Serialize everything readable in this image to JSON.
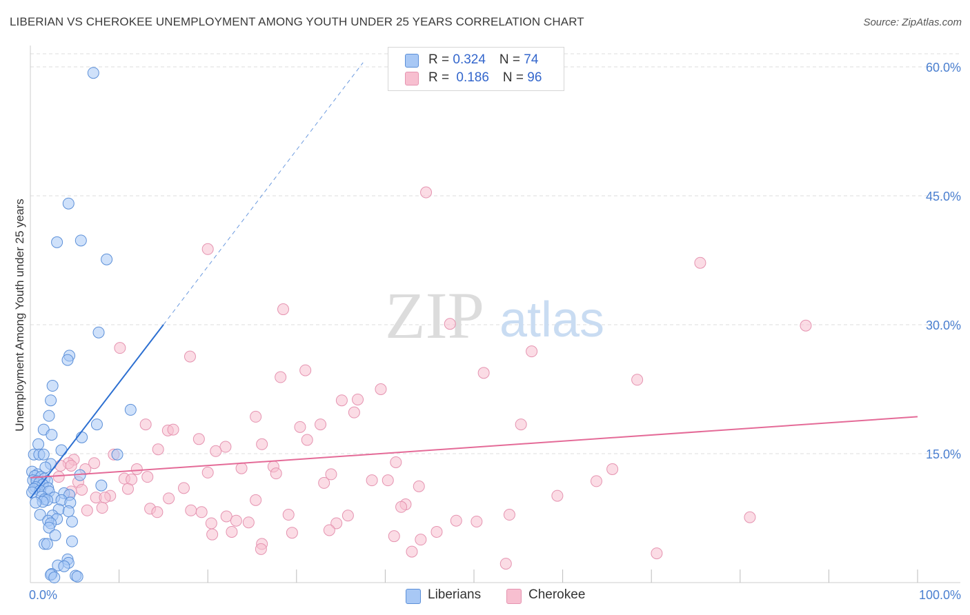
{
  "header": {
    "title": "LIBERIAN VS CHEROKEE UNEMPLOYMENT AMONG YOUTH UNDER 25 YEARS CORRELATION CHART",
    "source": "Source: ZipAtlas.com"
  },
  "watermark": {
    "zip": "ZIP",
    "atlas": "atlas"
  },
  "legend": {
    "rows": [
      {
        "r_label": "R = ",
        "r_value": "0.324",
        "n_label": "N = ",
        "n_value": "74"
      },
      {
        "r_label": "R = ",
        "r_value": "0.186",
        "n_label": "N = ",
        "n_value": "96"
      }
    ]
  },
  "bottom_legend": {
    "liberians": "Liberians",
    "cherokee": "Cherokee"
  },
  "colors": {
    "liberian_fill": "#a8c8f5",
    "liberian_stroke": "#5b8fd8",
    "liberian_line": "#2c6fd1",
    "cherokee_fill": "#f7bfd0",
    "cherokee_stroke": "#e593b0",
    "cherokee_line": "#e46a97",
    "tick_text": "#4a7fd0",
    "grid": "#dedede"
  },
  "chart_data": {
    "type": "scatter",
    "title": "LIBERIAN VS CHEROKEE UNEMPLOYMENT AMONG YOUTH UNDER 25 YEARS CORRELATION CHART",
    "xlabel": "",
    "ylabel": "Unemployment Among Youth under 25 years",
    "xlim": [
      0,
      100
    ],
    "ylim": [
      0,
      63
    ],
    "x_tick_labels": [
      {
        "value": 0,
        "label": "0.0%"
      },
      {
        "value": 100,
        "label": "100.0%"
      }
    ],
    "x_minor_ticks": [
      10,
      20,
      30,
      40,
      50,
      60,
      70,
      80,
      90,
      100
    ],
    "y_ticks": [
      {
        "value": 15,
        "label": "15.0%"
      },
      {
        "value": 30,
        "label": "30.0%"
      },
      {
        "value": 45,
        "label": "45.0%"
      },
      {
        "value": 60,
        "label": "60.0%"
      }
    ],
    "series": [
      {
        "name": "Liberians",
        "R": 0.324,
        "N": 74,
        "trend": {
          "x0": 0,
          "y0": 9.8,
          "x1": 15,
          "y1": 30,
          "dash_to_x": 37.5,
          "dash_to_y": 60.5
        },
        "points": [
          [
            7.1,
            59.3
          ],
          [
            4.3,
            44.1
          ],
          [
            3.0,
            39.6
          ],
          [
            5.7,
            39.8
          ],
          [
            8.6,
            37.6
          ],
          [
            7.7,
            29.1
          ],
          [
            4.4,
            26.4
          ],
          [
            4.2,
            25.9
          ],
          [
            2.5,
            22.9
          ],
          [
            2.3,
            21.2
          ],
          [
            11.3,
            20.1
          ],
          [
            2.1,
            19.4
          ],
          [
            7.5,
            18.4
          ],
          [
            1.5,
            17.8
          ],
          [
            2.4,
            17.2
          ],
          [
            5.8,
            16.9
          ],
          [
            0.9,
            16.1
          ],
          [
            3.5,
            15.4
          ],
          [
            9.8,
            14.9
          ],
          [
            0.4,
            14.9
          ],
          [
            1.0,
            14.9
          ],
          [
            1.5,
            14.9
          ],
          [
            2.3,
            13.8
          ],
          [
            1.7,
            13.4
          ],
          [
            0.2,
            12.9
          ],
          [
            0.8,
            12.6
          ],
          [
            5.6,
            12.5
          ],
          [
            0.5,
            12.4
          ],
          [
            1.2,
            12.3
          ],
          [
            1.6,
            12.1
          ],
          [
            0.3,
            11.9
          ],
          [
            0.7,
            11.8
          ],
          [
            1.9,
            11.8
          ],
          [
            1.0,
            11.6
          ],
          [
            1.4,
            11.4
          ],
          [
            8.0,
            11.3
          ],
          [
            0.6,
            11.1
          ],
          [
            2.0,
            11.0
          ],
          [
            0.4,
            10.9
          ],
          [
            1.1,
            10.7
          ],
          [
            2.1,
            10.6
          ],
          [
            0.2,
            10.5
          ],
          [
            3.8,
            10.4
          ],
          [
            4.4,
            10.2
          ],
          [
            1.3,
            10.0
          ],
          [
            2.7,
            9.9
          ],
          [
            1.6,
            9.7
          ],
          [
            1.9,
            9.6
          ],
          [
            3.5,
            9.6
          ],
          [
            1.4,
            9.4
          ],
          [
            0.6,
            9.3
          ],
          [
            4.5,
            9.3
          ],
          [
            3.2,
            8.5
          ],
          [
            4.3,
            8.3
          ],
          [
            1.1,
            7.9
          ],
          [
            2.5,
            7.8
          ],
          [
            3.0,
            7.4
          ],
          [
            2.0,
            7.2
          ],
          [
            4.7,
            7.1
          ],
          [
            2.3,
            6.9
          ],
          [
            2.1,
            6.4
          ],
          [
            2.8,
            5.5
          ],
          [
            4.7,
            4.8
          ],
          [
            1.6,
            4.5
          ],
          [
            1.9,
            4.5
          ],
          [
            4.2,
            2.7
          ],
          [
            4.3,
            2.3
          ],
          [
            3.1,
            2.0
          ],
          [
            3.8,
            1.9
          ],
          [
            2.4,
            1.0
          ],
          [
            2.3,
            0.9
          ],
          [
            5.1,
            0.8
          ],
          [
            5.3,
            0.7
          ],
          [
            2.7,
            0.6
          ]
        ]
      },
      {
        "name": "Cherokee",
        "R": 0.186,
        "N": 96,
        "trend": {
          "x0": 0,
          "y0": 12.2,
          "x1": 100,
          "y1": 19.3
        },
        "points": [
          [
            44.6,
            45.4
          ],
          [
            20.0,
            38.8
          ],
          [
            75.5,
            37.2
          ],
          [
            28.5,
            31.8
          ],
          [
            47.3,
            30.1
          ],
          [
            87.4,
            29.9
          ],
          [
            10.1,
            27.3
          ],
          [
            56.5,
            26.9
          ],
          [
            18.0,
            26.3
          ],
          [
            31.0,
            24.7
          ],
          [
            51.1,
            24.4
          ],
          [
            68.4,
            23.6
          ],
          [
            28.2,
            23.9
          ],
          [
            39.5,
            22.5
          ],
          [
            36.9,
            21.3
          ],
          [
            35.1,
            21.2
          ],
          [
            36.5,
            19.8
          ],
          [
            25.4,
            19.3
          ],
          [
            13.0,
            18.4
          ],
          [
            55.3,
            18.4
          ],
          [
            30.4,
            18.1
          ],
          [
            32.7,
            18.4
          ],
          [
            15.5,
            17.7
          ],
          [
            16.1,
            17.8
          ],
          [
            19.0,
            16.7
          ],
          [
            31.2,
            16.6
          ],
          [
            22.0,
            15.8
          ],
          [
            26.1,
            16.1
          ],
          [
            20.9,
            15.3
          ],
          [
            14.4,
            15.5
          ],
          [
            9.4,
            14.9
          ],
          [
            4.9,
            14.3
          ],
          [
            4.3,
            13.9
          ],
          [
            7.2,
            13.9
          ],
          [
            3.4,
            13.6
          ],
          [
            4.6,
            13.6
          ],
          [
            27.4,
            13.5
          ],
          [
            41.2,
            14.0
          ],
          [
            6.2,
            13.2
          ],
          [
            23.8,
            13.3
          ],
          [
            12.0,
            13.2
          ],
          [
            65.6,
            13.2
          ],
          [
            20.0,
            12.8
          ],
          [
            33.9,
            12.6
          ],
          [
            27.7,
            12.7
          ],
          [
            3.2,
            12.3
          ],
          [
            13.2,
            12.3
          ],
          [
            10.6,
            12.1
          ],
          [
            11.4,
            12.0
          ],
          [
            40.3,
            11.9
          ],
          [
            38.5,
            11.9
          ],
          [
            63.8,
            11.8
          ],
          [
            5.4,
            11.7
          ],
          [
            33.1,
            11.6
          ],
          [
            43.8,
            11.2
          ],
          [
            17.3,
            11.0
          ],
          [
            11.0,
            10.9
          ],
          [
            5.8,
            10.8
          ],
          [
            4.6,
            10.6
          ],
          [
            9.0,
            10.1
          ],
          [
            59.4,
            10.1
          ],
          [
            7.4,
            9.9
          ],
          [
            8.4,
            9.9
          ],
          [
            15.6,
            9.8
          ],
          [
            25.4,
            9.6
          ],
          [
            42.3,
            9.1
          ],
          [
            41.8,
            8.8
          ],
          [
            8.1,
            8.7
          ],
          [
            13.5,
            8.6
          ],
          [
            6.4,
            8.4
          ],
          [
            18.1,
            8.4
          ],
          [
            14.3,
            8.2
          ],
          [
            19.3,
            8.2
          ],
          [
            29.1,
            7.9
          ],
          [
            54.0,
            7.9
          ],
          [
            35.8,
            7.8
          ],
          [
            22.1,
            7.7
          ],
          [
            23.2,
            7.2
          ],
          [
            48.0,
            7.2
          ],
          [
            50.3,
            7.1
          ],
          [
            81.1,
            7.6
          ],
          [
            24.6,
            7.0
          ],
          [
            20.4,
            6.9
          ],
          [
            34.5,
            6.9
          ],
          [
            22.7,
            5.9
          ],
          [
            45.8,
            5.9
          ],
          [
            29.5,
            5.8
          ],
          [
            33.7,
            6.1
          ],
          [
            41.0,
            5.4
          ],
          [
            26.1,
            4.5
          ],
          [
            43.0,
            3.6
          ],
          [
            70.6,
            3.4
          ],
          [
            53.6,
            2.2
          ],
          [
            20.5,
            5.6
          ],
          [
            44.0,
            5.0
          ],
          [
            26.0,
            3.9
          ]
        ]
      }
    ]
  }
}
